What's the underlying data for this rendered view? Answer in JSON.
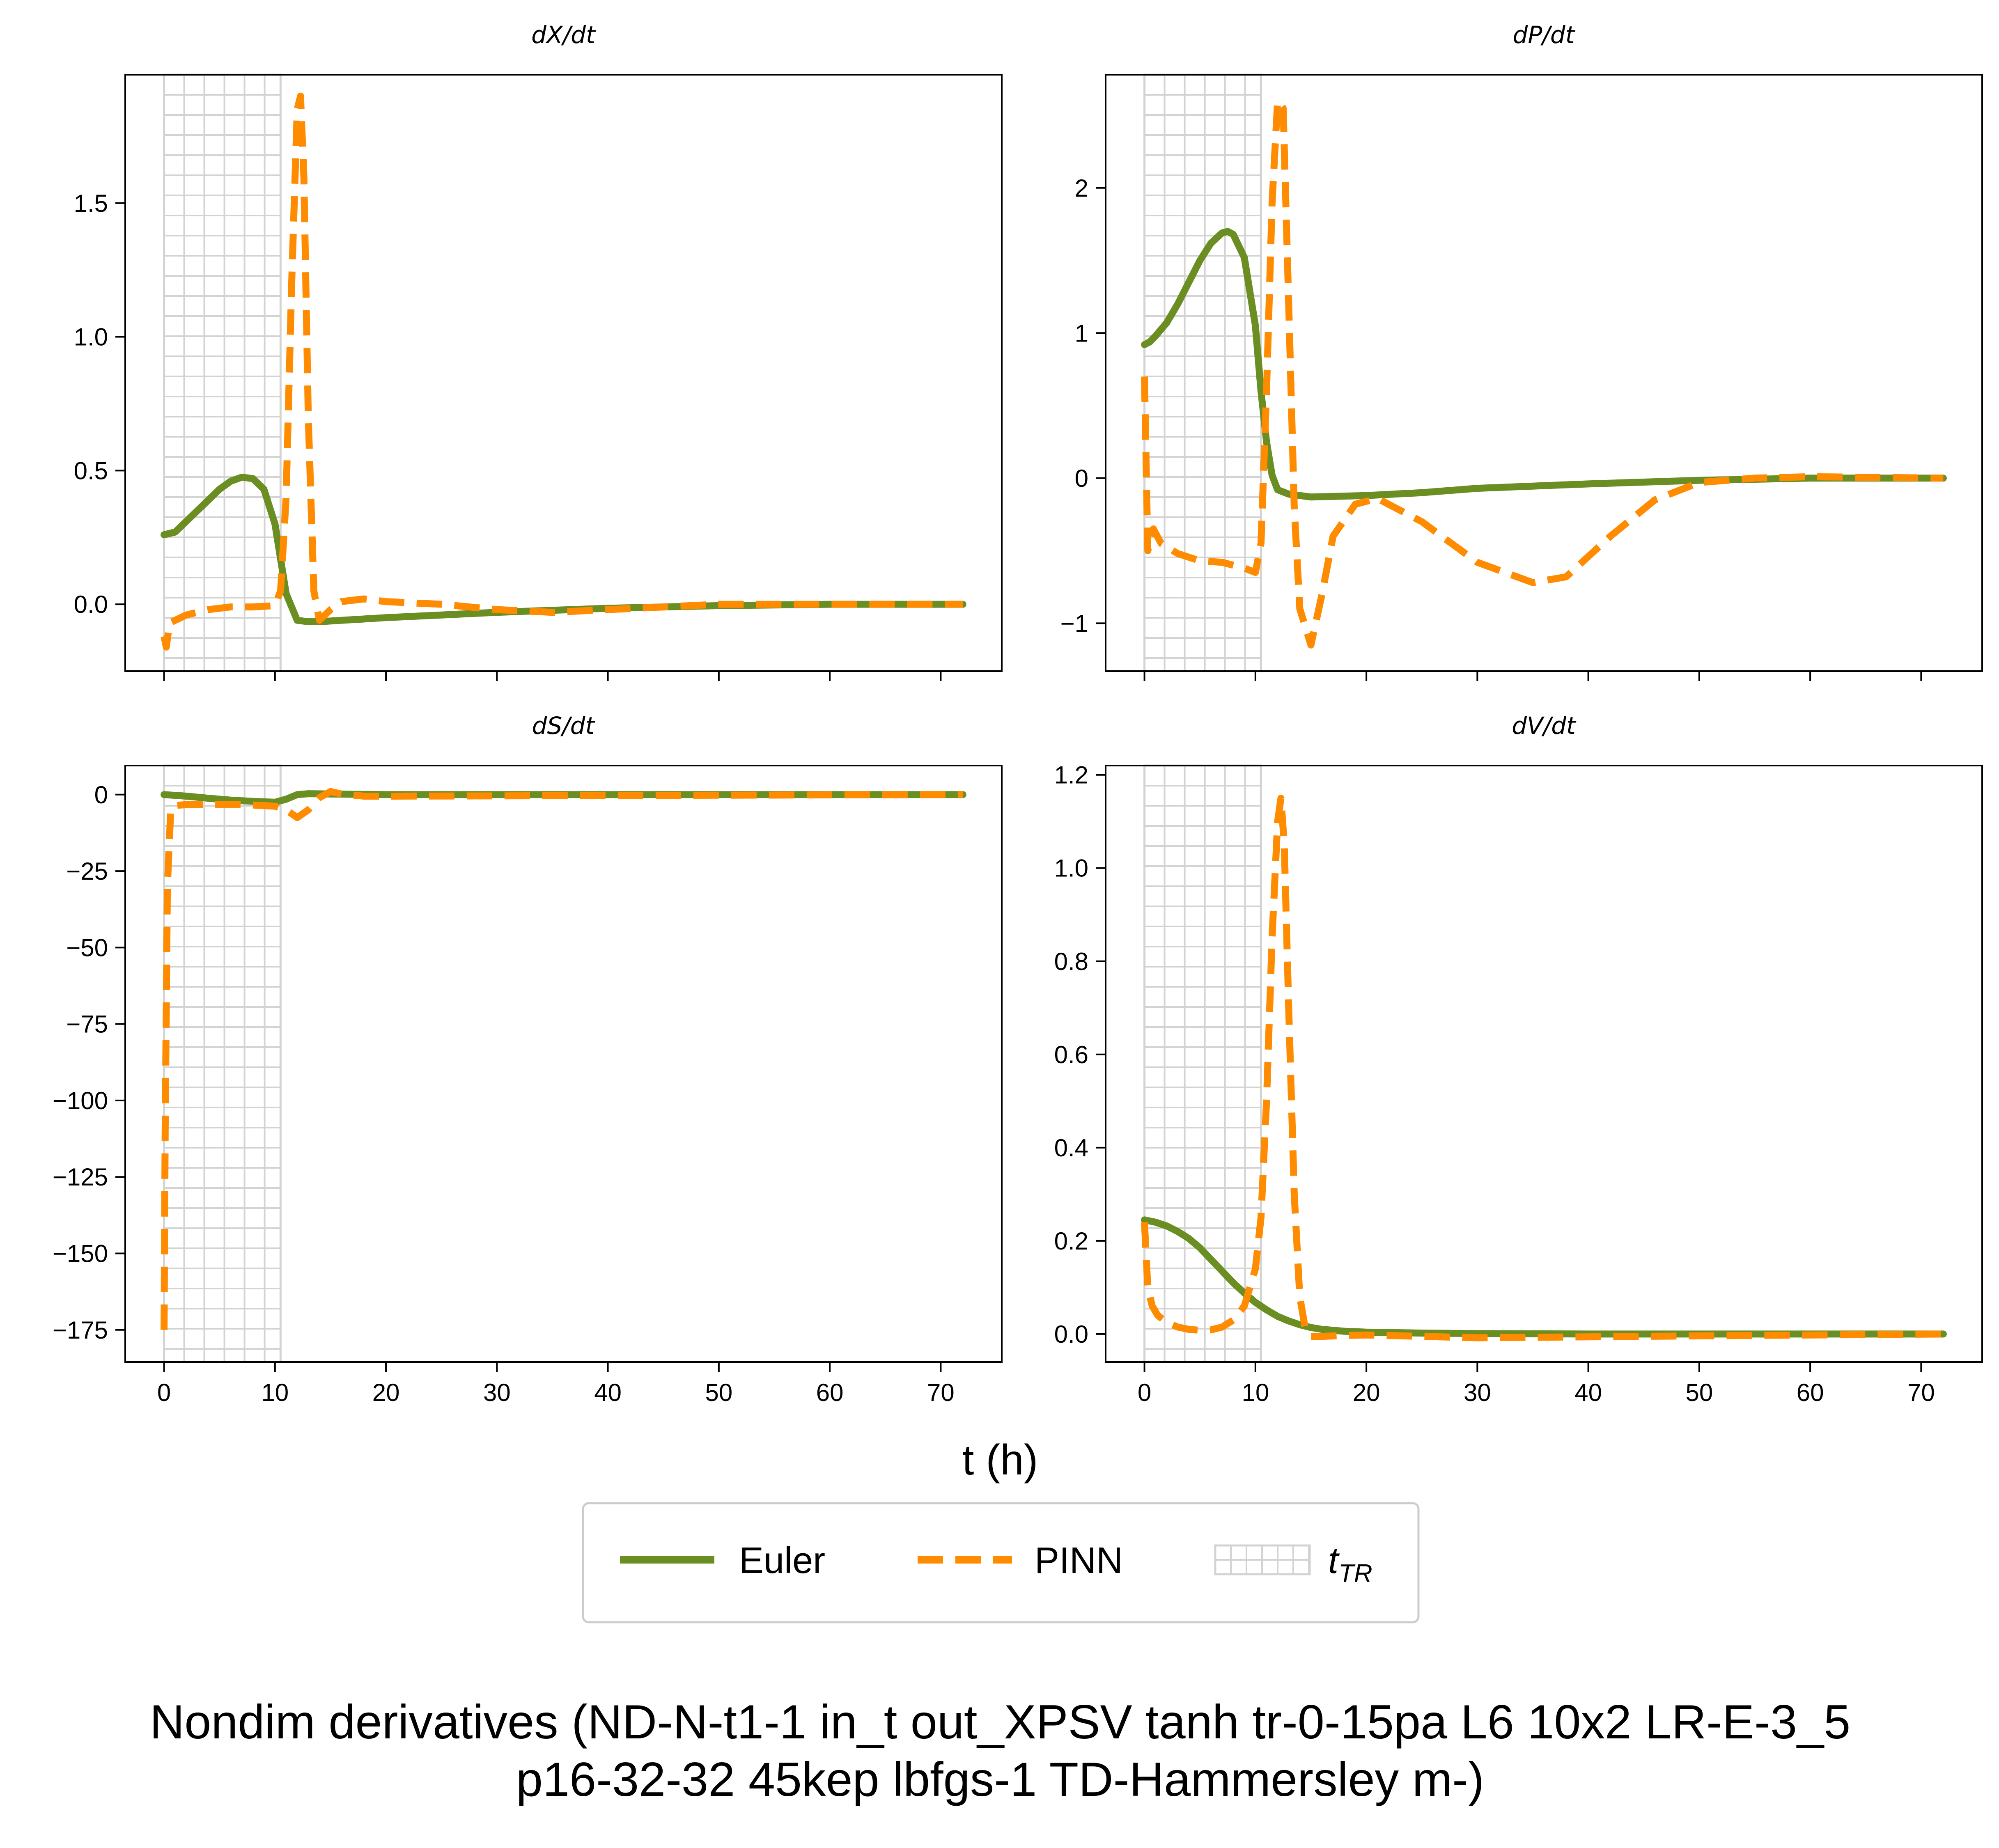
{
  "figure": {
    "title_line1": "Nondim derivatives (ND-N-t1-1 in_t out_XPSV tanh tr-0-15pa L6 10x2 LR-E-3_5",
    "title_line2": "p16-32-32 45kep lbfgs-1 TD-Hammersley m-)",
    "xlabel": "t (h)",
    "colors": {
      "euler": "#6b8e23",
      "pinn": "#ff8c00",
      "hatch": "#d3d3d3"
    }
  },
  "legend": {
    "items": [
      {
        "label": "Euler",
        "style": "solid",
        "color": "#6b8e23"
      },
      {
        "label": "PINN",
        "style": "dashed",
        "color": "#ff8c00"
      },
      {
        "label": "t",
        "subscript": "TR",
        "style": "hatch-box",
        "color": "#d3d3d3"
      }
    ],
    "placement": "bottom-center"
  },
  "chart_data": [
    {
      "type": "line",
      "title": "dX/dt",
      "xlabel": "t (h)",
      "xlim": [
        -3.5,
        75.5
      ],
      "ylim": [
        -0.25,
        1.98
      ],
      "xticks": [
        0,
        10,
        20,
        30,
        40,
        50,
        60,
        70
      ],
      "yticks": [
        0.0,
        0.5,
        1.0,
        1.5
      ],
      "ytick_labels": [
        "0.0",
        "0.5",
        "1.0",
        "1.5"
      ],
      "show_xtick_labels": false,
      "shaded_region": {
        "label": "t_TR",
        "x": [
          0,
          10.5
        ],
        "pattern": "grid"
      },
      "series": [
        {
          "name": "Euler",
          "style": "solid",
          "x": [
            0,
            1,
            2,
            3,
            4,
            5,
            6,
            7,
            8,
            9,
            10,
            11,
            12,
            13,
            14,
            16,
            20,
            25,
            30,
            40,
            50,
            60,
            72
          ],
          "y": [
            0.26,
            0.27,
            0.31,
            0.35,
            0.39,
            0.43,
            0.46,
            0.475,
            0.47,
            0.43,
            0.3,
            0.04,
            -0.06,
            -0.065,
            -0.065,
            -0.06,
            -0.05,
            -0.04,
            -0.03,
            -0.015,
            -0.005,
            0.0,
            0.0
          ]
        },
        {
          "name": "PINN",
          "style": "dashed",
          "x": [
            0,
            0.2,
            0.5,
            1,
            2,
            4,
            6,
            8,
            10,
            10.5,
            11,
            11.5,
            12,
            12.3,
            12.6,
            13,
            13.5,
            14,
            15,
            16,
            18,
            20,
            25,
            30,
            35,
            40,
            45,
            50,
            55,
            60,
            65,
            72
          ],
          "y": [
            -0.12,
            -0.16,
            -0.07,
            -0.06,
            -0.04,
            -0.02,
            -0.01,
            -0.01,
            -0.005,
            0.05,
            0.4,
            1.2,
            1.85,
            1.9,
            1.6,
            0.7,
            0.05,
            -0.06,
            -0.02,
            0.01,
            0.02,
            0.01,
            0.0,
            -0.02,
            -0.03,
            -0.02,
            -0.01,
            0.0,
            0.0,
            0.0,
            0.0,
            0.0
          ]
        }
      ]
    },
    {
      "type": "line",
      "title": "dP/dt",
      "xlabel": "t (h)",
      "xlim": [
        -3.5,
        75.5
      ],
      "ylim": [
        -1.33,
        2.78
      ],
      "xticks": [
        0,
        10,
        20,
        30,
        40,
        50,
        60,
        70
      ],
      "yticks": [
        -1,
        0,
        1,
        2
      ],
      "ytick_labels": [
        "−1",
        "0",
        "1",
        "2"
      ],
      "show_xtick_labels": false,
      "shaded_region": {
        "label": "t_TR",
        "x": [
          0,
          10.5
        ],
        "pattern": "grid"
      },
      "series": [
        {
          "name": "Euler",
          "style": "solid",
          "x": [
            0,
            0.5,
            1,
            2,
            3,
            4,
            5,
            6,
            7,
            7.5,
            8,
            9,
            10,
            10.5,
            11,
            11.5,
            12,
            13,
            15,
            20,
            25,
            30,
            40,
            50,
            60,
            72
          ],
          "y": [
            0.92,
            0.94,
            0.98,
            1.07,
            1.2,
            1.35,
            1.5,
            1.62,
            1.69,
            1.7,
            1.68,
            1.52,
            1.05,
            0.6,
            0.25,
            0.02,
            -0.08,
            -0.11,
            -0.13,
            -0.12,
            -0.1,
            -0.07,
            -0.04,
            -0.015,
            0.0,
            0.0
          ]
        },
        {
          "name": "PINN",
          "style": "dashed",
          "x": [
            0,
            0.3,
            0.8,
            1.5,
            3,
            5,
            7,
            9,
            10,
            10.5,
            11,
            11.5,
            12,
            12.5,
            13,
            13.5,
            14,
            15,
            16,
            17,
            19,
            21,
            25,
            30,
            35,
            38,
            42,
            46,
            50,
            55,
            60,
            72
          ],
          "y": [
            0.7,
            -0.5,
            -0.35,
            -0.45,
            -0.52,
            -0.57,
            -0.58,
            -0.62,
            -0.65,
            -0.45,
            0.6,
            1.9,
            2.6,
            2.55,
            1.2,
            -0.2,
            -0.9,
            -1.15,
            -0.8,
            -0.4,
            -0.18,
            -0.14,
            -0.3,
            -0.58,
            -0.72,
            -0.68,
            -0.4,
            -0.15,
            -0.03,
            0.0,
            0.01,
            0.0
          ]
        }
      ]
    },
    {
      "type": "line",
      "title": "dS/dt",
      "xlabel": "t (h)",
      "xlim": [
        -3.5,
        75.5
      ],
      "ylim": [
        -185.5,
        9.5
      ],
      "xticks": [
        0,
        10,
        20,
        30,
        40,
        50,
        60,
        70
      ],
      "yticks": [
        0,
        -25,
        -50,
        -75,
        -100,
        -125,
        -150,
        -175
      ],
      "ytick_labels": [
        "0",
        "−25",
        "−50",
        "−75",
        "−100",
        "−125",
        "−150",
        "−175"
      ],
      "xtick_labels": [
        "0",
        "10",
        "20",
        "30",
        "40",
        "50",
        "60",
        "70"
      ],
      "show_xtick_labels": true,
      "shaded_region": {
        "label": "t_TR",
        "x": [
          0,
          10.5
        ],
        "pattern": "grid"
      },
      "series": [
        {
          "name": "Euler",
          "style": "solid",
          "x": [
            0,
            2,
            4,
            6,
            8,
            10,
            11,
            12,
            13,
            15,
            20,
            30,
            40,
            50,
            60,
            72
          ],
          "y": [
            0,
            -0.5,
            -1.2,
            -1.8,
            -2.2,
            -2.5,
            -1.5,
            0.0,
            0.3,
            0.2,
            0.0,
            0.0,
            0.0,
            0.0,
            0.0,
            0.0
          ]
        },
        {
          "name": "PINN",
          "style": "dashed",
          "x": [
            0,
            0.1,
            0.3,
            0.6,
            1,
            2,
            4,
            6,
            8,
            10,
            11,
            12,
            13,
            14,
            15,
            16,
            18,
            20,
            30,
            40,
            50,
            60,
            72
          ],
          "y": [
            -175,
            -110,
            -30,
            -5,
            -3.5,
            -3.3,
            -3.2,
            -3.2,
            -3.4,
            -3.8,
            -5,
            -7.5,
            -5,
            -1,
            1,
            0.2,
            -0.5,
            -0.5,
            -0.4,
            -0.3,
            -0.2,
            -0.1,
            0.0
          ]
        }
      ]
    },
    {
      "type": "line",
      "title": "dV/dt",
      "xlabel": "t (h)",
      "xlim": [
        -3.5,
        75.5
      ],
      "ylim": [
        -0.06,
        1.22
      ],
      "xticks": [
        0,
        10,
        20,
        30,
        40,
        50,
        60,
        70
      ],
      "yticks": [
        0.0,
        0.2,
        0.4,
        0.6,
        0.8,
        1.0,
        1.2
      ],
      "ytick_labels": [
        "0.0",
        "0.2",
        "0.4",
        "0.6",
        "0.8",
        "1.0",
        "1.2"
      ],
      "xtick_labels": [
        "0",
        "10",
        "20",
        "30",
        "40",
        "50",
        "60",
        "70"
      ],
      "show_xtick_labels": true,
      "shaded_region": {
        "label": "t_TR",
        "x": [
          0,
          10.5
        ],
        "pattern": "grid"
      },
      "series": [
        {
          "name": "Euler",
          "style": "solid",
          "x": [
            0,
            1,
            2,
            3,
            4,
            5,
            6,
            7,
            8,
            9,
            10,
            11,
            12,
            13,
            14,
            15,
            16,
            18,
            20,
            25,
            30,
            40,
            50,
            60,
            72
          ],
          "y": [
            0.245,
            0.24,
            0.232,
            0.22,
            0.205,
            0.185,
            0.16,
            0.135,
            0.11,
            0.088,
            0.068,
            0.052,
            0.038,
            0.028,
            0.02,
            0.014,
            0.01,
            0.006,
            0.004,
            0.002,
            0.001,
            0.0,
            0.0,
            0.0,
            0.0
          ]
        },
        {
          "name": "PINN",
          "style": "dashed",
          "x": [
            0,
            0.3,
            0.7,
            1.2,
            2,
            3,
            4,
            5,
            6,
            7,
            8,
            9,
            10,
            10.5,
            11,
            11.5,
            12,
            12.3,
            12.6,
            13,
            13.5,
            14,
            14.5,
            15,
            16,
            18,
            20,
            25,
            30,
            40,
            50,
            60,
            72
          ],
          "y": [
            0.24,
            0.1,
            0.06,
            0.04,
            0.025,
            0.015,
            0.01,
            0.008,
            0.009,
            0.015,
            0.03,
            0.06,
            0.14,
            0.25,
            0.5,
            0.85,
            1.1,
            1.15,
            1.05,
            0.7,
            0.3,
            0.08,
            0.01,
            -0.005,
            -0.005,
            -0.003,
            -0.002,
            -0.005,
            -0.008,
            -0.006,
            -0.004,
            -0.002,
            0.0
          ]
        }
      ]
    }
  ]
}
